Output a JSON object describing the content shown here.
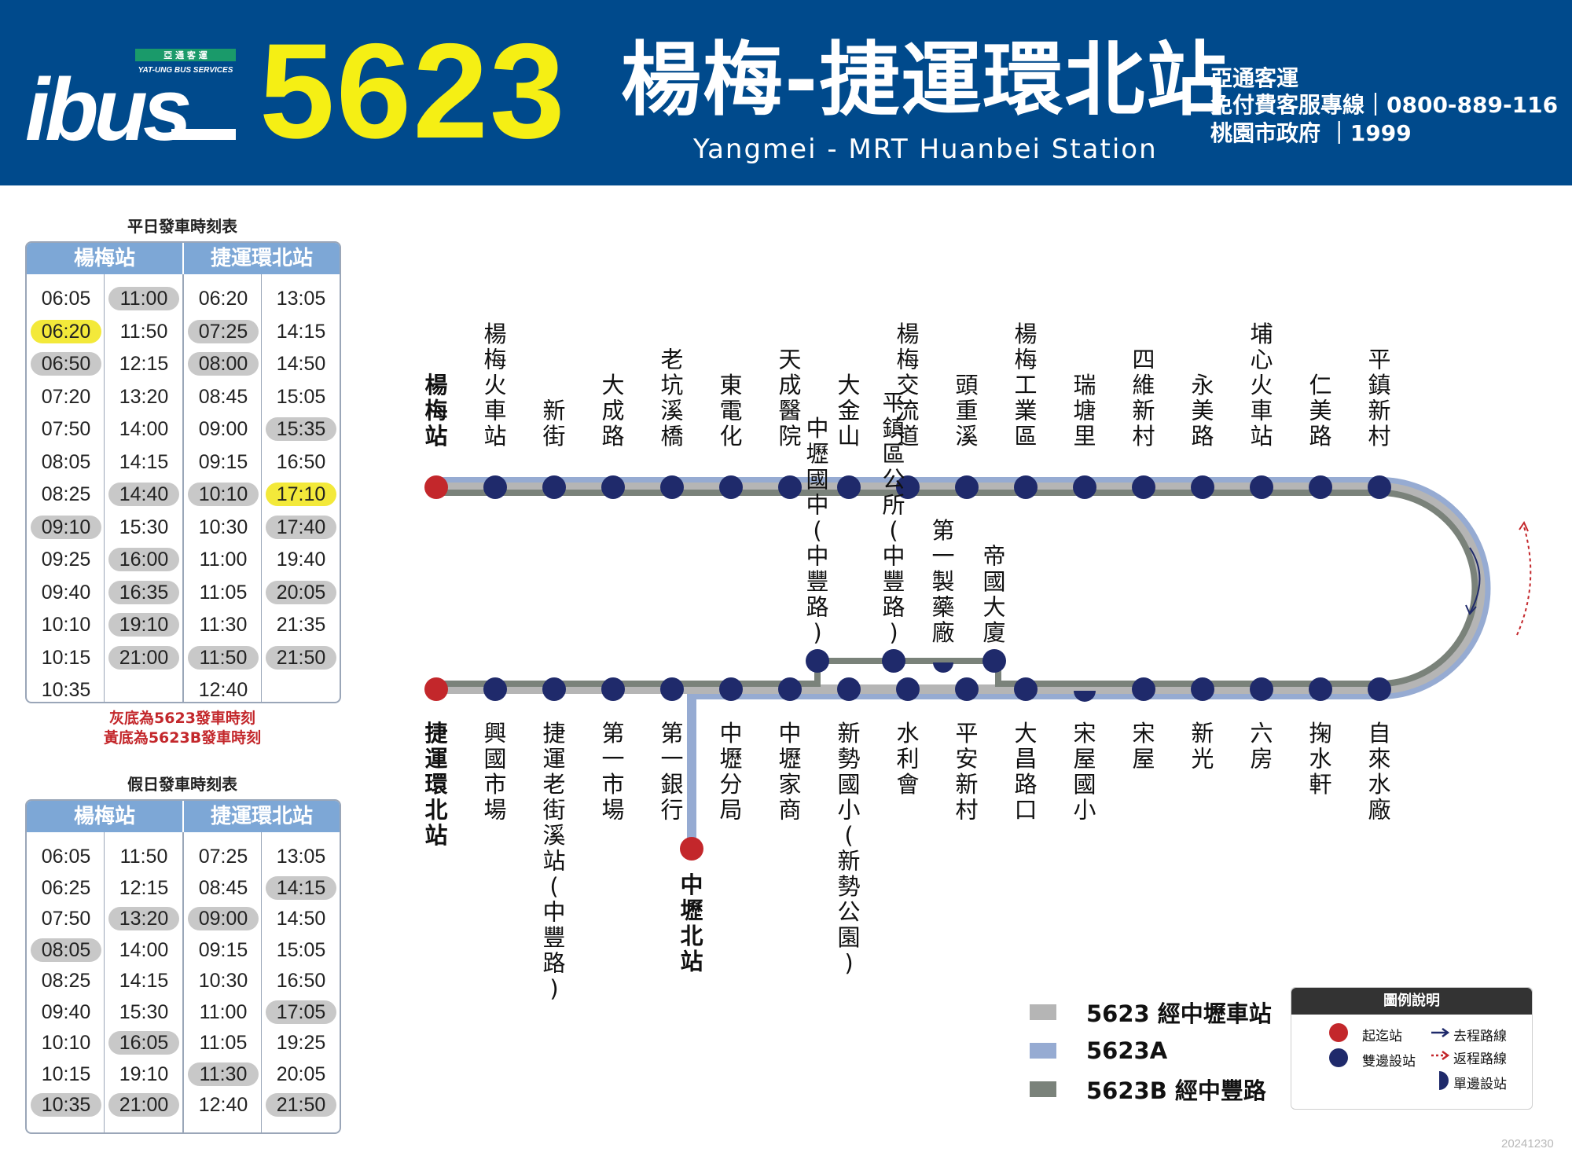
{
  "header": {
    "logo_text": "ibus",
    "logo_company": "亞 通 客 運",
    "logo_company_en": "YAT-UNG BUS SERVICES",
    "route_number": "5623",
    "route_name": "楊梅-捷運環北站",
    "route_name_en": "Yangmei - MRT Huanbei Station",
    "operator": "亞通客運",
    "hotline": "免付費客服專線｜0800-889-116",
    "government": "桃園市政府 ｜1999"
  },
  "colors": {
    "header_bg": "#004a8c",
    "route_number": "#f5ef14",
    "stop_blue": "#1f2a6b",
    "terminal_red": "#c3272b",
    "line_5623": "#b5b5b5",
    "line_5623A": "#96abd2",
    "line_5623B": "#7a827a",
    "highlight_gray": "#c8c8c8",
    "highlight_yellow": "#f3e93a"
  },
  "weekday": {
    "title": "平日發車時刻表",
    "headers": [
      "楊梅站",
      "捷運環北站"
    ],
    "rows": [
      [
        [
          "06:05",
          ""
        ],
        [
          "11:00",
          "g"
        ],
        [
          "06:20",
          ""
        ],
        [
          "13:05",
          ""
        ]
      ],
      [
        [
          "06:20",
          "y"
        ],
        [
          "11:50",
          ""
        ],
        [
          "07:25",
          "g"
        ],
        [
          "14:15",
          ""
        ]
      ],
      [
        [
          "06:50",
          "g"
        ],
        [
          "12:15",
          ""
        ],
        [
          "08:00",
          "g"
        ],
        [
          "14:50",
          ""
        ]
      ],
      [
        [
          "07:20",
          ""
        ],
        [
          "13:20",
          ""
        ],
        [
          "08:45",
          ""
        ],
        [
          "15:05",
          ""
        ]
      ],
      [
        [
          "07:50",
          ""
        ],
        [
          "14:00",
          ""
        ],
        [
          "09:00",
          ""
        ],
        [
          "15:35",
          "g"
        ]
      ],
      [
        [
          "08:05",
          ""
        ],
        [
          "14:15",
          ""
        ],
        [
          "09:15",
          ""
        ],
        [
          "16:50",
          ""
        ]
      ],
      [
        [
          "08:25",
          ""
        ],
        [
          "14:40",
          "g"
        ],
        [
          "10:10",
          "g"
        ],
        [
          "17:10",
          "y"
        ]
      ],
      [
        [
          "09:10",
          "g"
        ],
        [
          "15:30",
          ""
        ],
        [
          "10:30",
          ""
        ],
        [
          "17:40",
          "g"
        ]
      ],
      [
        [
          "09:25",
          ""
        ],
        [
          "16:00",
          "g"
        ],
        [
          "11:00",
          ""
        ],
        [
          "19:40",
          ""
        ]
      ],
      [
        [
          "09:40",
          ""
        ],
        [
          "16:35",
          "g"
        ],
        [
          "11:05",
          ""
        ],
        [
          "20:05",
          "g"
        ]
      ],
      [
        [
          "10:10",
          ""
        ],
        [
          "19:10",
          "g"
        ],
        [
          "11:30",
          ""
        ],
        [
          "21:35",
          ""
        ]
      ],
      [
        [
          "10:15",
          ""
        ],
        [
          "21:00",
          "g"
        ],
        [
          "11:50",
          "g"
        ],
        [
          "21:50",
          "g"
        ]
      ],
      [
        [
          "10:35",
          ""
        ],
        [
          "",
          ""
        ],
        [
          "12:40",
          ""
        ],
        [
          "",
          ""
        ]
      ]
    ]
  },
  "notes": [
    "灰底為5623發車時刻",
    "黃底為5623B發車時刻"
  ],
  "holiday": {
    "title": "假日發車時刻表",
    "headers": [
      "楊梅站",
      "捷運環北站"
    ],
    "rows": [
      [
        [
          "06:05",
          ""
        ],
        [
          "11:50",
          ""
        ],
        [
          "07:25",
          ""
        ],
        [
          "13:05",
          ""
        ]
      ],
      [
        [
          "06:25",
          ""
        ],
        [
          "12:15",
          ""
        ],
        [
          "08:45",
          ""
        ],
        [
          "14:15",
          "g"
        ]
      ],
      [
        [
          "07:50",
          ""
        ],
        [
          "13:20",
          "g"
        ],
        [
          "09:00",
          "g"
        ],
        [
          "14:50",
          ""
        ]
      ],
      [
        [
          "08:05",
          "g"
        ],
        [
          "14:00",
          ""
        ],
        [
          "09:15",
          ""
        ],
        [
          "15:05",
          ""
        ]
      ],
      [
        [
          "08:25",
          ""
        ],
        [
          "14:15",
          ""
        ],
        [
          "10:30",
          ""
        ],
        [
          "16:50",
          ""
        ]
      ],
      [
        [
          "09:40",
          ""
        ],
        [
          "15:30",
          ""
        ],
        [
          "11:00",
          ""
        ],
        [
          "17:05",
          "g"
        ]
      ],
      [
        [
          "10:10",
          ""
        ],
        [
          "16:05",
          "g"
        ],
        [
          "11:05",
          ""
        ],
        [
          "19:25",
          ""
        ]
      ],
      [
        [
          "10:15",
          ""
        ],
        [
          "19:10",
          ""
        ],
        [
          "11:30",
          "g"
        ],
        [
          "20:05",
          ""
        ]
      ],
      [
        [
          "10:35",
          "g"
        ],
        [
          "21:00",
          "g"
        ],
        [
          "12:40",
          ""
        ],
        [
          "21:50",
          "g"
        ]
      ]
    ]
  },
  "route_map": {
    "top_stops": [
      "楊梅站",
      "楊梅火車站",
      "新街",
      "大成路",
      "老坑溪橋",
      "東電化",
      "天成醫院",
      "大金山",
      "楊梅交流道",
      "頭重溪",
      "楊梅工業區",
      "瑞塘里",
      "四維新村",
      "永美路",
      "埔心火車站",
      "仁美路",
      "平鎮新村"
    ],
    "bottom_stops": [
      "捷運環北站",
      "興國市場",
      "捷運老街溪站(中豐路)",
      "第一市場",
      "第一銀行",
      "中壢分局",
      "中壢家商",
      "新勢國小(新勢公園)",
      "水利會",
      "平安新村",
      "大昌路口",
      "宋屋國小",
      "宋屋",
      "新光",
      "六房",
      "掬水軒",
      "自來水廠"
    ],
    "branch_stops": [
      "中壢國中(中豐路)",
      "平鎮區公所(中豐路)",
      "第一製藥廠",
      "帝國大廈"
    ],
    "spur_stop": "中壢北站"
  },
  "legend": {
    "lines": [
      {
        "label": "5623 經中壢車站",
        "color": "#b5b5b5"
      },
      {
        "label": "5623A",
        "color": "#96abd2"
      },
      {
        "label": "5623B 經中豐路",
        "color": "#7a827a"
      }
    ],
    "box_title": "圖例說明",
    "terminal": "起迄站",
    "both_sides": "雙邊設站",
    "outbound": "去程路線",
    "return": "返程路線",
    "one_side": "單邊設站"
  },
  "date_code": "20241230"
}
